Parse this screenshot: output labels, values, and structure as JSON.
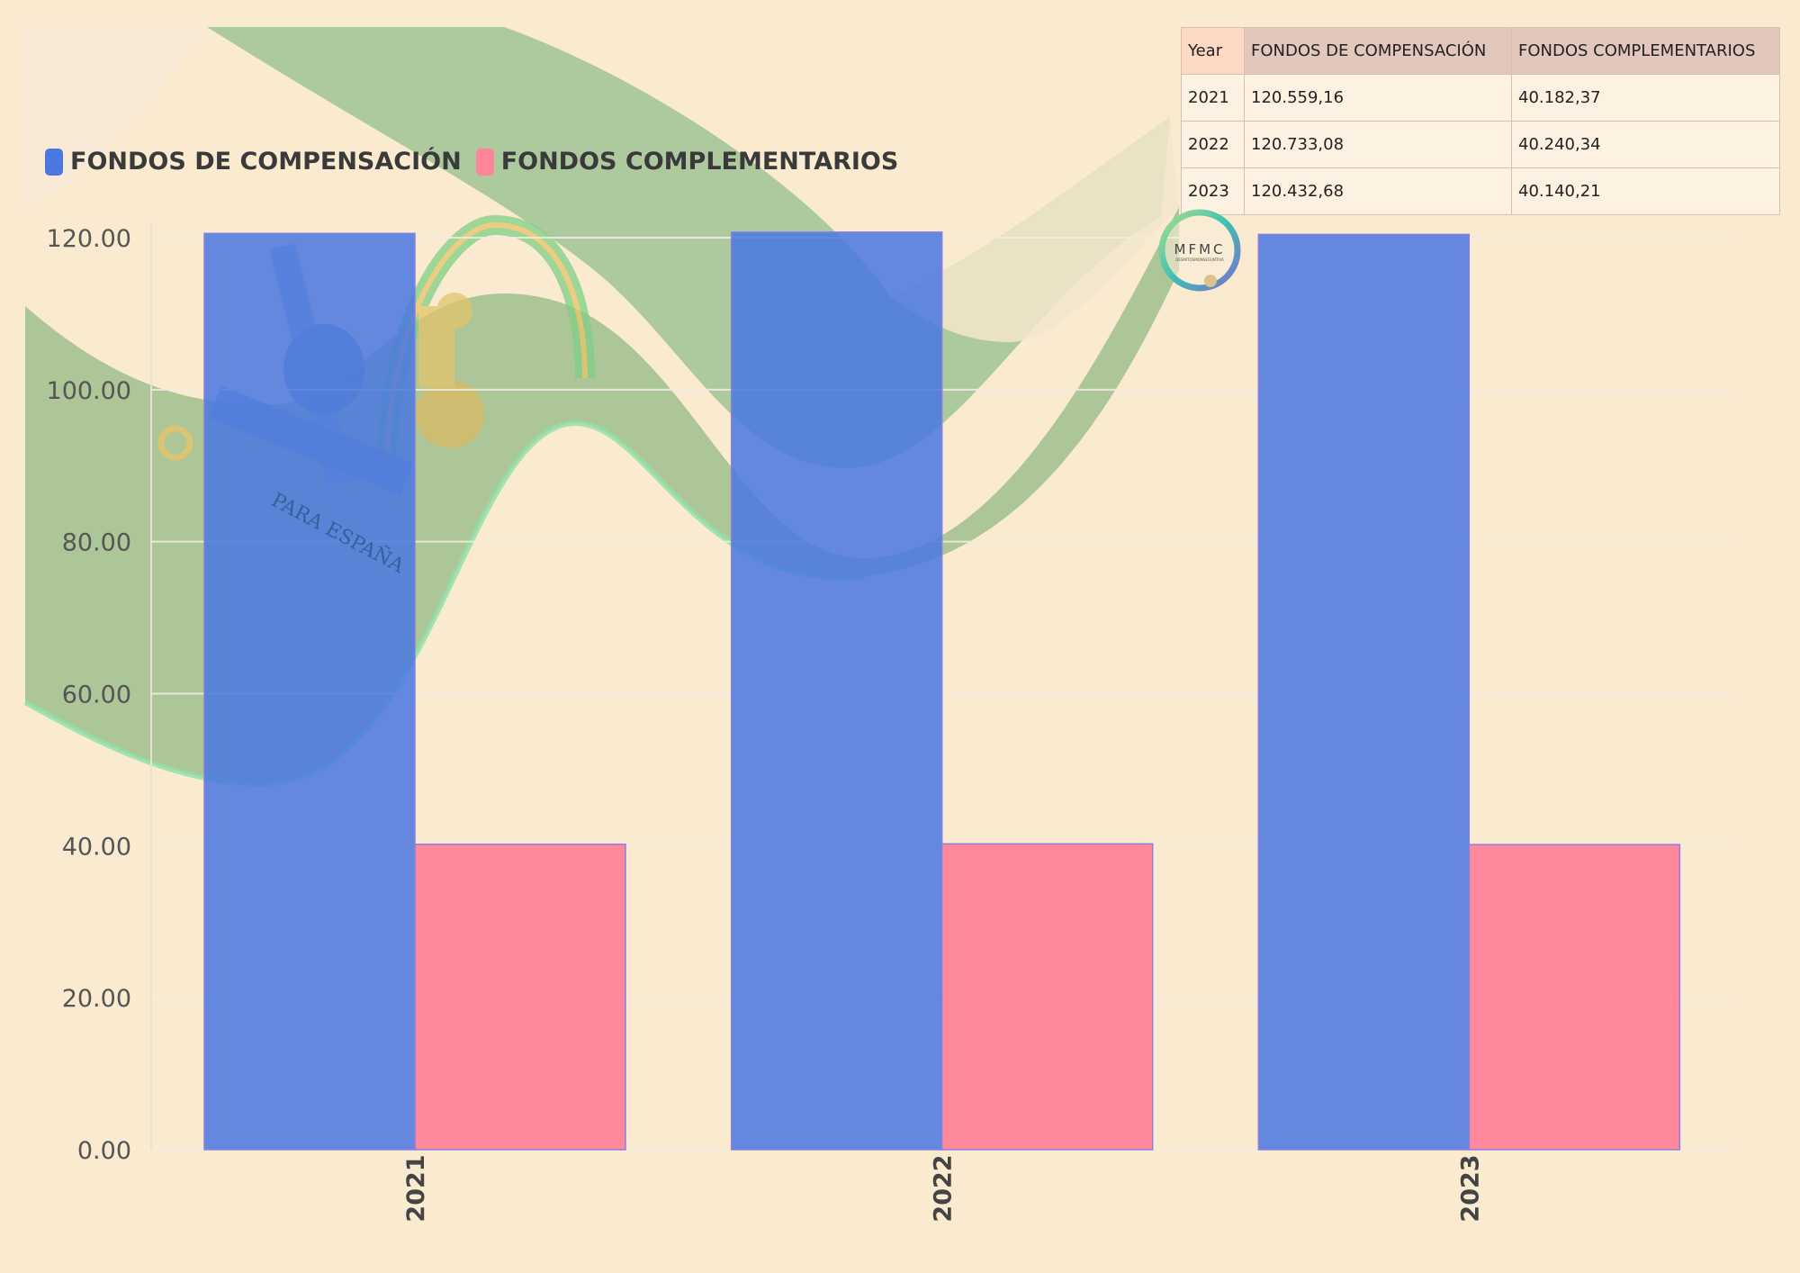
{
  "chart_data": {
    "type": "bar",
    "categories": [
      "2021",
      "2022",
      "2023"
    ],
    "series": [
      {
        "name": "FONDOS DE COMPENSACIÓN",
        "color": "#4a78e0",
        "values": [
          120.56,
          120.73,
          120.43
        ]
      },
      {
        "name": "FONDOS COMPLEMENTARIOS",
        "color": "#ff8399",
        "values": [
          40.18,
          40.24,
          40.14
        ]
      }
    ],
    "ylim": [
      0,
      120
    ],
    "yticks": [
      0,
      20,
      40,
      60,
      80,
      100,
      120
    ],
    "ytick_labels": [
      "0.00",
      "20.00",
      "40.00",
      "60.00",
      "80.00",
      "100.00",
      "120.00"
    ],
    "legend_position": "top-left",
    "grid": true
  },
  "table": {
    "headers": [
      "Year",
      "FONDOS DE COMPENSACIÓN",
      "FONDOS COMPLEMENTARIOS"
    ],
    "rows": [
      [
        "2021",
        "120.559,16",
        "40.182,37"
      ],
      [
        "2022",
        "120.733,08",
        "40.240,34"
      ],
      [
        "2023",
        "120.432,68",
        "40.140,21"
      ]
    ]
  },
  "logo": {
    "text": "MFMC",
    "subtext": "DESMITOSMONSEGUNTIVA"
  },
  "emblem_text": "PARA ESPAÑA"
}
